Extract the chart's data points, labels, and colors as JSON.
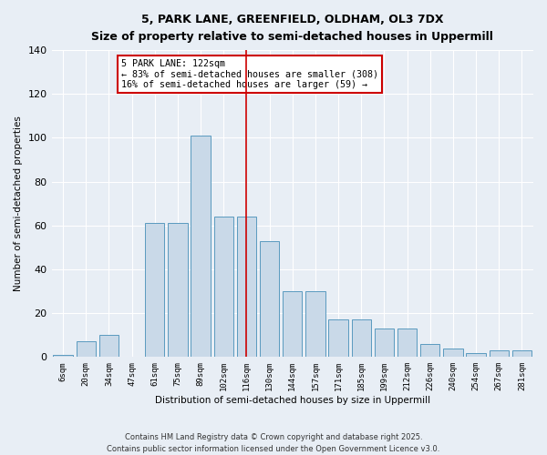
{
  "title_line1": "5, PARK LANE, GREENFIELD, OLDHAM, OL3 7DX",
  "title_line2": "Size of property relative to semi-detached houses in Uppermill",
  "xlabel": "Distribution of semi-detached houses by size in Uppermill",
  "ylabel": "Number of semi-detached properties",
  "bar_labels": [
    "6sqm",
    "20sqm",
    "34sqm",
    "47sqm",
    "61sqm",
    "75sqm",
    "89sqm",
    "102sqm",
    "116sqm",
    "130sqm",
    "144sqm",
    "157sqm",
    "171sqm",
    "185sqm",
    "199sqm",
    "212sqm",
    "226sqm",
    "240sqm",
    "254sqm",
    "267sqm",
    "281sqm"
  ],
  "bar_values": [
    1,
    7,
    10,
    0,
    61,
    61,
    101,
    64,
    64,
    53,
    30,
    30,
    17,
    17,
    13,
    13,
    6,
    4,
    2,
    3,
    3
  ],
  "bar_color": "#c9d9e8",
  "bar_edge_color": "#5a9abf",
  "background_color": "#e8eef5",
  "grid_color": "#ffffff",
  "vline_color": "#cc0000",
  "annotation_title": "5 PARK LANE: 122sqm",
  "annotation_line2": "← 83% of semi-detached houses are smaller (308)",
  "annotation_line3": "16% of semi-detached houses are larger (59) →",
  "annotation_box_color": "#ffffff",
  "annotation_border_color": "#cc0000",
  "ylim": [
    0,
    140
  ],
  "yticks": [
    0,
    20,
    40,
    60,
    80,
    100,
    120,
    140
  ],
  "footer_line1": "Contains HM Land Registry data © Crown copyright and database right 2025.",
  "footer_line2": "Contains public sector information licensed under the Open Government Licence v3.0."
}
